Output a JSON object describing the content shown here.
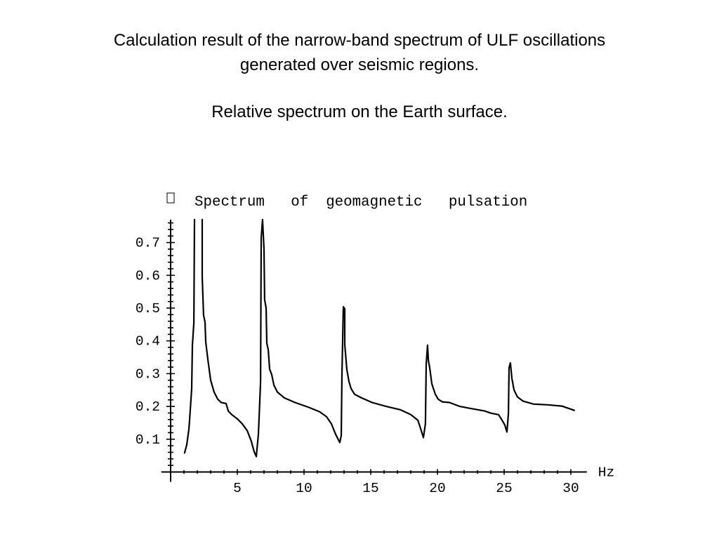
{
  "slide": {
    "title_lines": [
      "Calculation result of the narrow-band spectrum of ULF oscillations",
      "generated over seismic regions."
    ],
    "subtitle": "Relative spectrum on the Earth surface."
  },
  "colors": {
    "background": "#ffffff",
    "text": "#000000",
    "line": "#000000"
  },
  "chart_data": {
    "type": "line",
    "title": "Spectrum   of  geomagnetic   pulsation",
    "xlabel": "Hz",
    "ylabel": "",
    "xlim": [
      -0.7,
      31.2
    ],
    "ylim": [
      -0.03,
      0.77
    ],
    "x_ticks": [
      5,
      10,
      15,
      20,
      25,
      30
    ],
    "y_ticks": [
      0.1,
      0.2,
      0.3,
      0.4,
      0.5,
      0.6,
      0.7
    ],
    "grid": false,
    "legend": "none",
    "series": [
      {
        "values": [
          [
            1.05,
            0.058
          ],
          [
            1.21,
            0.083
          ],
          [
            1.37,
            0.13
          ],
          [
            1.42,
            0.158
          ],
          [
            1.58,
            0.254
          ],
          [
            1.63,
            0.387
          ],
          [
            1.74,
            0.455
          ],
          [
            1.79,
            0.77
          ],
          null,
          [
            2.37,
            0.77
          ],
          [
            2.37,
            0.596
          ],
          [
            2.47,
            0.479
          ],
          [
            2.58,
            0.457
          ],
          [
            2.63,
            0.397
          ],
          [
            2.79,
            0.344
          ],
          [
            3.0,
            0.28
          ],
          [
            3.26,
            0.244
          ],
          [
            3.53,
            0.222
          ],
          [
            3.79,
            0.212
          ],
          [
            4.16,
            0.209
          ],
          [
            4.32,
            0.186
          ],
          [
            4.58,
            0.175
          ],
          [
            5.0,
            0.162
          ],
          [
            5.37,
            0.147
          ],
          [
            5.74,
            0.126
          ],
          [
            6.05,
            0.094
          ],
          [
            6.26,
            0.062
          ],
          [
            6.42,
            0.047
          ],
          [
            6.58,
            0.115
          ],
          [
            6.68,
            0.212
          ],
          [
            6.74,
            0.276
          ],
          [
            6.79,
            0.714
          ],
          [
            6.89,
            0.77
          ],
          [
            7.0,
            0.68
          ],
          [
            7.05,
            0.526
          ],
          [
            7.16,
            0.5
          ],
          [
            7.21,
            0.393
          ],
          [
            7.32,
            0.372
          ],
          [
            7.42,
            0.314
          ],
          [
            7.58,
            0.297
          ],
          [
            7.74,
            0.265
          ],
          [
            8.0,
            0.244
          ],
          [
            8.53,
            0.226
          ],
          [
            9.32,
            0.212
          ],
          [
            10.37,
            0.197
          ],
          [
            11.16,
            0.184
          ],
          [
            11.68,
            0.169
          ],
          [
            12.05,
            0.147
          ],
          [
            12.37,
            0.115
          ],
          [
            12.68,
            0.09
          ],
          [
            12.79,
            0.111
          ],
          [
            12.84,
            0.297
          ],
          [
            12.95,
            0.504
          ],
          [
            13.05,
            0.498
          ],
          [
            13.05,
            0.389
          ],
          [
            13.21,
            0.312
          ],
          [
            13.37,
            0.276
          ],
          [
            13.53,
            0.254
          ],
          [
            13.79,
            0.237
          ],
          [
            14.32,
            0.226
          ],
          [
            15.1,
            0.212
          ],
          [
            16.16,
            0.2
          ],
          [
            17.21,
            0.19
          ],
          [
            18.0,
            0.175
          ],
          [
            18.53,
            0.158
          ],
          [
            18.79,
            0.126
          ],
          [
            18.95,
            0.105
          ],
          [
            19.1,
            0.147
          ],
          [
            19.16,
            0.329
          ],
          [
            19.26,
            0.387
          ],
          [
            19.32,
            0.34
          ],
          [
            19.42,
            0.318
          ],
          [
            19.58,
            0.269
          ],
          [
            19.84,
            0.237
          ],
          [
            20.05,
            0.222
          ],
          [
            20.37,
            0.214
          ],
          [
            20.9,
            0.212
          ],
          [
            21.68,
            0.2
          ],
          [
            22.47,
            0.194
          ],
          [
            23.53,
            0.186
          ],
          [
            24.05,
            0.179
          ],
          [
            24.58,
            0.175
          ],
          [
            24.84,
            0.158
          ],
          [
            25.05,
            0.143
          ],
          [
            25.21,
            0.122
          ],
          [
            25.32,
            0.179
          ],
          [
            25.37,
            0.318
          ],
          [
            25.47,
            0.333
          ],
          [
            25.58,
            0.286
          ],
          [
            25.74,
            0.25
          ],
          [
            26.0,
            0.229
          ],
          [
            26.42,
            0.216
          ],
          [
            27.21,
            0.207
          ],
          [
            28.26,
            0.205
          ],
          [
            29.32,
            0.201
          ],
          [
            30.26,
            0.188
          ]
        ]
      }
    ]
  }
}
